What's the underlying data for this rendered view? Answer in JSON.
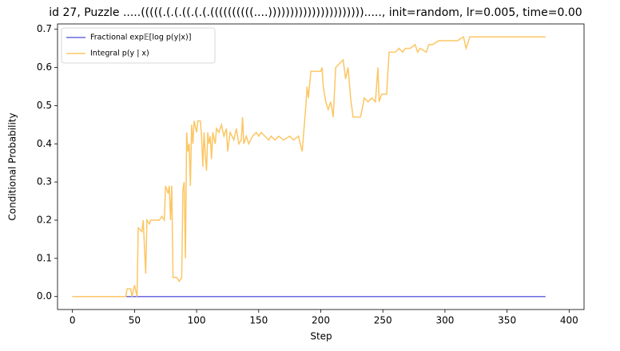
{
  "chart_data": {
    "type": "line",
    "title": "id 27, Puzzle .....(((((.(.(.((.(.(.((((((((((....))))))))))))))))))))))....., init=random, lr=0.005, time=0.00",
    "xlabel": "Step",
    "ylabel": "Conditional Probability",
    "xlim": [
      -12,
      412
    ],
    "ylim": [
      -0.034,
      0.714
    ],
    "xticks": [
      0,
      50,
      100,
      150,
      200,
      250,
      300,
      350,
      400
    ],
    "yticks": [
      {
        "value": 0,
        "label": "0.0"
      },
      0.1,
      0.2,
      0.3,
      0.4,
      0.5,
      0.6,
      0.7
    ],
    "legend": "upper left",
    "series": [
      {
        "name": "Fractional exp𝔼[log p(y|x)]",
        "color": "#6a6ae0",
        "x": [
          0,
          50,
          100,
          150,
          200,
          250,
          300,
          350,
          381
        ],
        "values": [
          0,
          0,
          0,
          0,
          0,
          0,
          0,
          0,
          0
        ]
      },
      {
        "name": "Integral p(y | x)",
        "color": "#fcc664",
        "x": [
          0,
          43,
          44,
          47,
          48,
          50,
          52,
          53,
          56,
          57,
          59,
          60,
          62,
          63,
          65,
          70,
          72,
          74,
          75,
          77,
          78,
          79,
          80,
          81,
          84,
          86,
          88,
          89,
          90,
          91,
          92,
          93,
          94,
          95,
          96,
          97,
          98,
          100,
          101,
          103,
          104,
          105,
          106,
          107,
          108,
          109,
          110,
          111,
          112,
          113,
          115,
          116,
          118,
          120,
          122,
          124,
          125,
          127,
          130,
          132,
          134,
          136,
          137,
          138,
          140,
          142,
          145,
          148,
          150,
          152,
          155,
          158,
          160,
          163,
          166,
          170,
          175,
          178,
          182,
          185,
          188,
          189,
          190,
          192,
          196,
          200,
          201,
          202,
          204,
          206,
          208,
          210,
          212,
          215,
          218,
          220,
          222,
          224,
          226,
          232,
          235,
          238,
          241,
          244,
          246,
          247,
          249,
          253,
          255,
          260,
          263,
          266,
          268,
          272,
          276,
          278,
          280,
          285,
          287,
          290,
          295,
          300,
          305,
          310,
          315,
          317,
          320,
          330,
          340,
          350,
          360,
          370,
          381
        ],
        "values": [
          0,
          0,
          0.02,
          0.02,
          0,
          0.03,
          0,
          0.18,
          0.17,
          0.2,
          0.06,
          0.2,
          0.19,
          0.2,
          0.2,
          0.2,
          0.21,
          0.2,
          0.29,
          0.27,
          0.29,
          0.2,
          0.29,
          0.05,
          0.05,
          0.04,
          0.05,
          0.28,
          0.3,
          0.1,
          0.43,
          0.38,
          0.4,
          0.29,
          0.45,
          0.4,
          0.46,
          0.43,
          0.46,
          0.46,
          0.42,
          0.34,
          0.43,
          0.37,
          0.33,
          0.43,
          0.4,
          0.42,
          0.36,
          0.43,
          0.4,
          0.44,
          0.43,
          0.45,
          0.42,
          0.44,
          0.38,
          0.43,
          0.41,
          0.44,
          0.4,
          0.41,
          0.47,
          0.4,
          0.42,
          0.4,
          0.42,
          0.43,
          0.42,
          0.43,
          0.42,
          0.41,
          0.42,
          0.41,
          0.42,
          0.41,
          0.42,
          0.41,
          0.42,
          0.38,
          0.5,
          0.55,
          0.52,
          0.59,
          0.59,
          0.59,
          0.6,
          0.55,
          0.51,
          0.49,
          0.51,
          0.47,
          0.6,
          0.61,
          0.62,
          0.57,
          0.6,
          0.52,
          0.47,
          0.47,
          0.52,
          0.51,
          0.52,
          0.51,
          0.6,
          0.51,
          0.53,
          0.53,
          0.64,
          0.64,
          0.65,
          0.64,
          0.65,
          0.65,
          0.66,
          0.64,
          0.65,
          0.64,
          0.66,
          0.66,
          0.67,
          0.67,
          0.67,
          0.67,
          0.68,
          0.65,
          0.68,
          0.68,
          0.68,
          0.68,
          0.68,
          0.68,
          0.68
        ]
      }
    ]
  }
}
